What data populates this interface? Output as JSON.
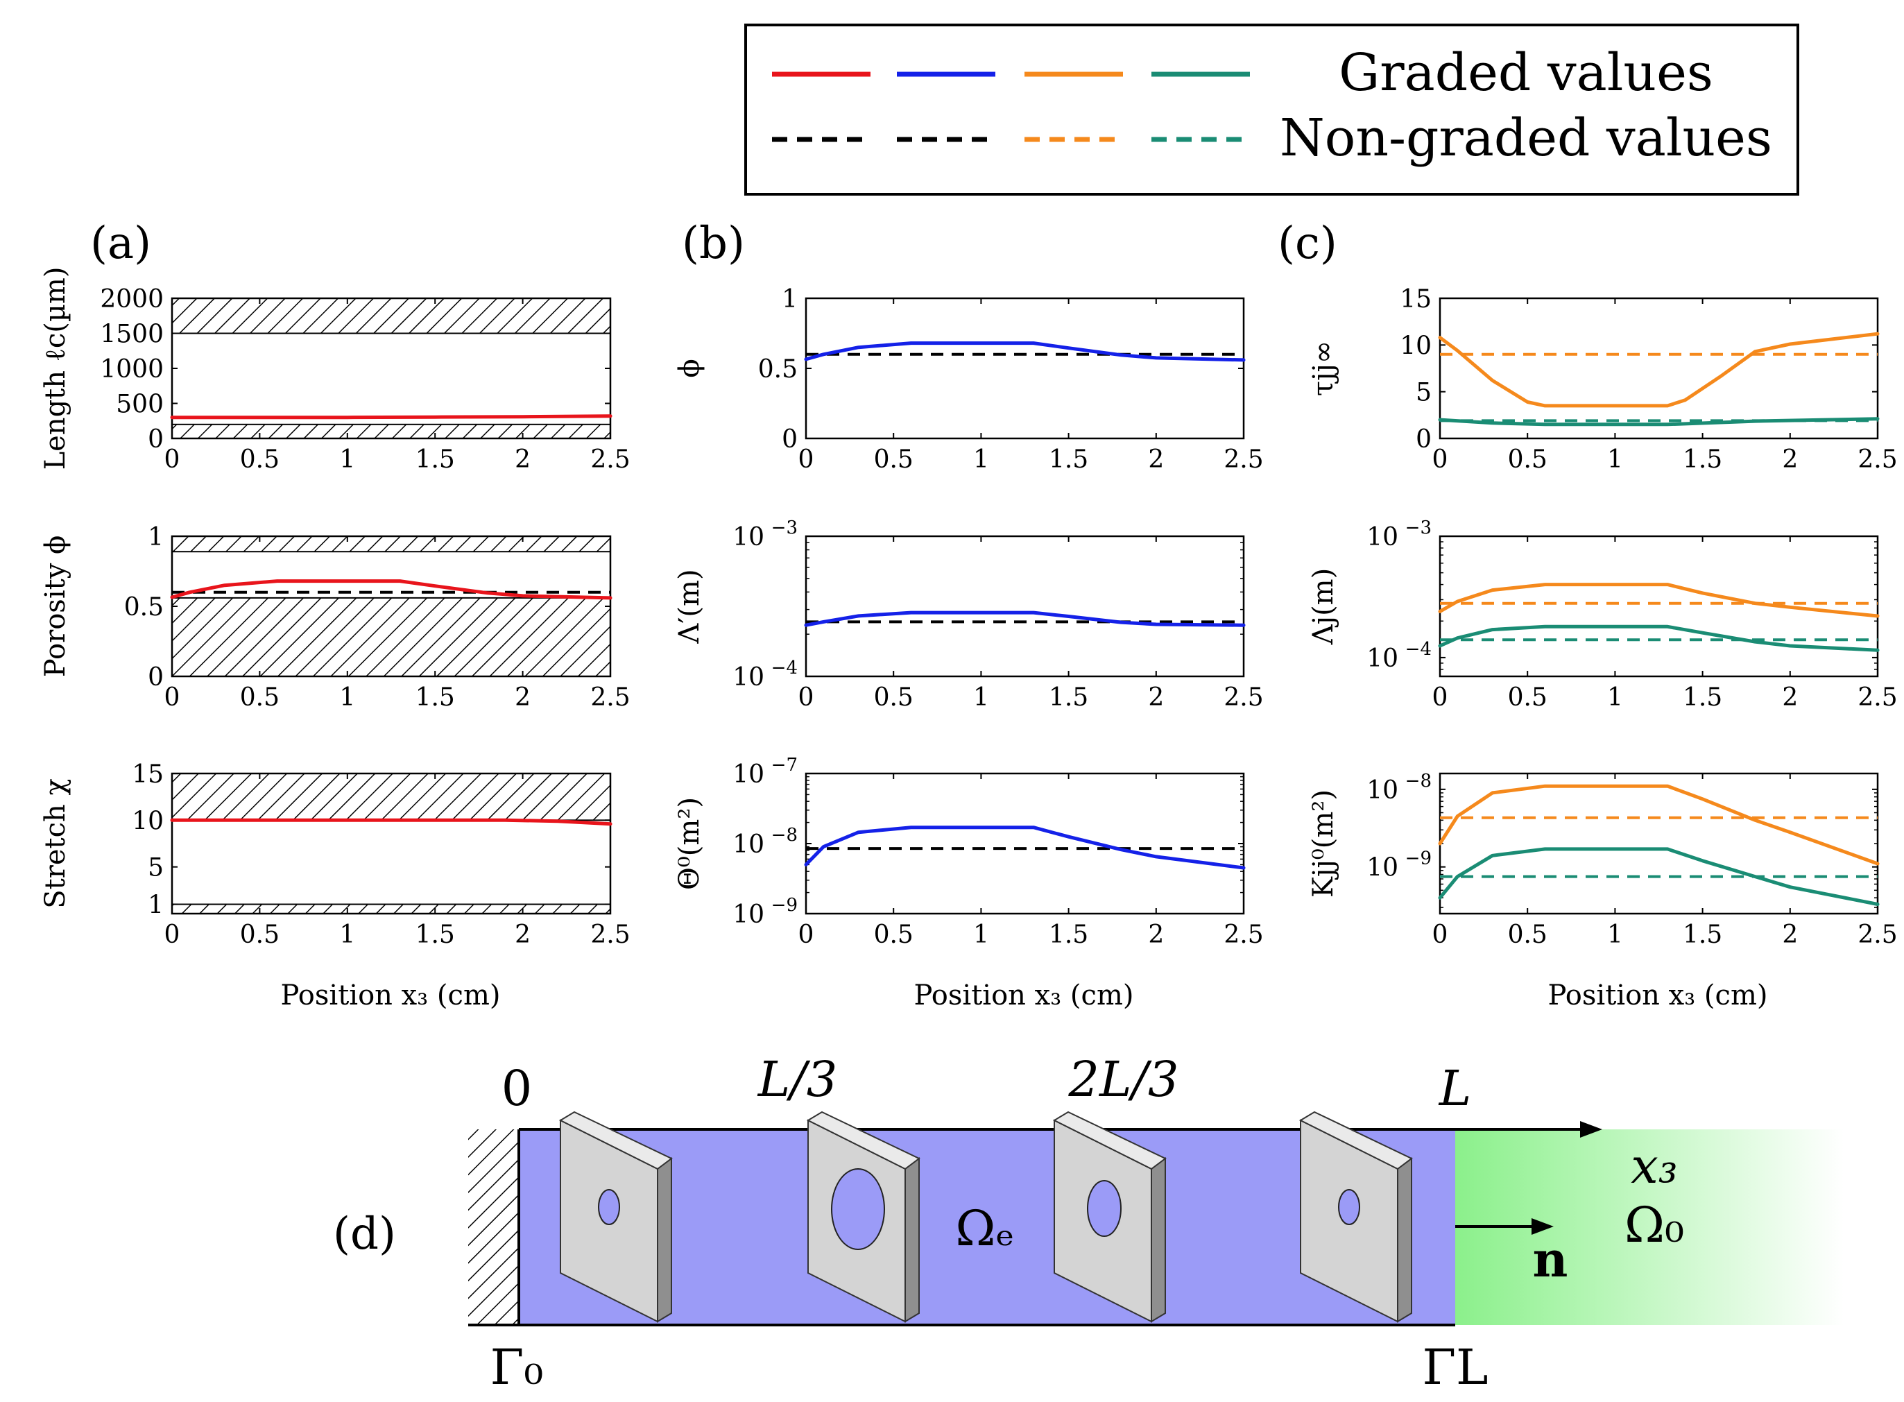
{
  "legend": {
    "graded_label": "Graded values",
    "nongraded_label": "Non-graded values",
    "colors": [
      "#e8141b",
      "#1421e8",
      "#f5891c",
      "#1a8c74",
      "#000000"
    ]
  },
  "panel_labels": {
    "a": "(a)",
    "b": "(b)",
    "c": "(c)",
    "d": "(d)"
  },
  "xlabel": "Position x₃ (cm)",
  "schematic": {
    "pos_labels": [
      "0",
      "L/3",
      "2L/3",
      "L"
    ],
    "x3": "x₃",
    "omega_e": "Ωₑ",
    "omega_0": "Ω₀",
    "n": "n",
    "gamma_0": "Γ₀",
    "gamma_L": "ΓL",
    "colors": {
      "solid": "#9b9bf7",
      "fluid": "#8bf08b",
      "plate": "#d4d4d4"
    }
  },
  "chart_data": [
    {
      "id": "a1",
      "type": "line",
      "ylabel": "Length ℓc(µm)",
      "xlim": [
        0,
        2.5
      ],
      "ylim": [
        0,
        2000
      ],
      "yscale": "linear",
      "xticks": [
        "0",
        "0.5",
        "1",
        "1.5",
        "2",
        "2.5"
      ],
      "yticks": [
        {
          "v": 0,
          "label": "0"
        },
        {
          "v": 500,
          "label": "500"
        },
        {
          "v": 1000,
          "label": "1000"
        },
        {
          "v": 1500,
          "label": "1500"
        },
        {
          "v": 2000,
          "label": "2000"
        }
      ],
      "hatch": [
        [
          0,
          200
        ],
        [
          1500,
          2000
        ]
      ],
      "series": [
        {
          "name": "Graded values",
          "color": "#e8141b",
          "dash": false,
          "x": [
            0,
            0.5,
            1,
            1.5,
            2,
            2.5
          ],
          "y": [
            300,
            300,
            300,
            305,
            310,
            320
          ]
        }
      ]
    },
    {
      "id": "a2",
      "type": "line",
      "ylabel": "Porosity ϕ",
      "xlim": [
        0,
        2.5
      ],
      "ylim": [
        0,
        1
      ],
      "yscale": "linear",
      "xticks": [
        "0",
        "0.5",
        "1",
        "1.5",
        "2",
        "2.5"
      ],
      "yticks": [
        {
          "v": 0,
          "label": "0"
        },
        {
          "v": 0.5,
          "label": "0.5"
        },
        {
          "v": 1,
          "label": "1"
        }
      ],
      "hatch": [
        [
          0,
          0.56
        ],
        [
          0.89,
          1
        ]
      ],
      "series": [
        {
          "name": "Graded values",
          "color": "#e8141b",
          "dash": false,
          "x": [
            0,
            0.1,
            0.3,
            0.6,
            1.3,
            1.5,
            1.8,
            2.0,
            2.5
          ],
          "y": [
            0.565,
            0.6,
            0.65,
            0.68,
            0.68,
            0.645,
            0.595,
            0.575,
            0.56
          ]
        },
        {
          "name": "Non-graded values",
          "color": "#000000",
          "dash": true,
          "x": [
            0,
            2.5
          ],
          "y": [
            0.6,
            0.6
          ]
        }
      ]
    },
    {
      "id": "a3",
      "type": "line",
      "ylabel": "Stretch χ",
      "xlim": [
        0,
        2.5
      ],
      "ylim": [
        0,
        15
      ],
      "yscale": "linear",
      "xticks": [
        "0",
        "0.5",
        "1",
        "1.5",
        "2",
        "2.5"
      ],
      "yticks": [
        {
          "v": 1,
          "label": "1"
        },
        {
          "v": 5,
          "label": "5"
        },
        {
          "v": 10,
          "label": "10"
        },
        {
          "v": 15,
          "label": "15"
        }
      ],
      "hatch": [
        [
          0,
          1
        ],
        [
          10,
          15
        ]
      ],
      "series": [
        {
          "name": "Graded values",
          "color": "#e8141b",
          "dash": false,
          "x": [
            0,
            0.5,
            1,
            1.5,
            1.9,
            2.2,
            2.5
          ],
          "y": [
            10,
            10,
            10,
            10,
            10,
            9.9,
            9.6
          ]
        }
      ]
    },
    {
      "id": "b1",
      "type": "line",
      "ylabel": "ϕ",
      "xlim": [
        0,
        2.5
      ],
      "ylim": [
        0,
        1
      ],
      "yscale": "linear",
      "xticks": [
        "0",
        "0.5",
        "1",
        "1.5",
        "2",
        "2.5"
      ],
      "yticks": [
        {
          "v": 0,
          "label": "0"
        },
        {
          "v": 0.5,
          "label": "0.5"
        },
        {
          "v": 1,
          "label": "1"
        }
      ],
      "series": [
        {
          "name": "Graded values",
          "color": "#1421e8",
          "dash": false,
          "x": [
            0,
            0.1,
            0.3,
            0.6,
            1.3,
            1.5,
            1.8,
            2.0,
            2.5
          ],
          "y": [
            0.565,
            0.6,
            0.65,
            0.68,
            0.68,
            0.645,
            0.595,
            0.575,
            0.56
          ]
        },
        {
          "name": "Non-graded values",
          "color": "#000000",
          "dash": true,
          "x": [
            0,
            2.5
          ],
          "y": [
            0.6,
            0.6
          ]
        }
      ]
    },
    {
      "id": "b2",
      "type": "line",
      "ylabel": "Λ′(m)",
      "xlim": [
        0,
        2.5
      ],
      "ylim": [
        0.0001,
        0.001
      ],
      "yscale": "log",
      "xticks": [
        "0",
        "0.5",
        "1",
        "1.5",
        "2",
        "2.5"
      ],
      "yticks": [
        {
          "v": 0.0001,
          "label": "10",
          "sup": "−4"
        },
        {
          "v": 0.001,
          "label": "10",
          "sup": "−3"
        }
      ],
      "series": [
        {
          "name": "Graded values",
          "color": "#1421e8",
          "dash": false,
          "x": [
            0,
            0.1,
            0.3,
            0.6,
            1.3,
            1.5,
            1.8,
            2.0,
            2.5
          ],
          "y": [
            0.000232,
            0.000245,
            0.00027,
            0.000285,
            0.000285,
            0.000268,
            0.000243,
            0.000235,
            0.000232
          ]
        },
        {
          "name": "Non-graded values",
          "color": "#000000",
          "dash": true,
          "x": [
            0,
            2.5
          ],
          "y": [
            0.000245,
            0.000245
          ]
        }
      ]
    },
    {
      "id": "b3",
      "type": "line",
      "ylabel": "Θ⁰(m²)",
      "xlim": [
        0,
        2.5
      ],
      "ylim": [
        1e-09,
        1e-07
      ],
      "yscale": "log",
      "xticks": [
        "0",
        "0.5",
        "1",
        "1.5",
        "2",
        "2.5"
      ],
      "yticks": [
        {
          "v": 1e-09,
          "label": "10",
          "sup": "−9"
        },
        {
          "v": 1e-08,
          "label": "10",
          "sup": "−8"
        },
        {
          "v": 1e-07,
          "label": "10",
          "sup": "−7"
        }
      ],
      "series": [
        {
          "name": "Graded values",
          "color": "#1421e8",
          "dash": false,
          "x": [
            0,
            0.1,
            0.3,
            0.6,
            1.3,
            1.5,
            1.8,
            2.0,
            2.5
          ],
          "y": [
            5e-09,
            9e-09,
            1.45e-08,
            1.7e-08,
            1.7e-08,
            1.25e-08,
            8.2e-09,
            6.5e-09,
            4.5e-09
          ]
        },
        {
          "name": "Non-graded values",
          "color": "#000000",
          "dash": true,
          "x": [
            0,
            2.5
          ],
          "y": [
            8.5e-09,
            8.5e-09
          ]
        }
      ]
    },
    {
      "id": "c1",
      "type": "line",
      "ylabel": "τjj∞",
      "xlim": [
        0,
        2.5
      ],
      "ylim": [
        0,
        15
      ],
      "yscale": "linear",
      "xticks": [
        "0",
        "0.5",
        "1",
        "1.5",
        "2",
        "2.5"
      ],
      "yticks": [
        {
          "v": 0,
          "label": "0"
        },
        {
          "v": 5,
          "label": "5"
        },
        {
          "v": 10,
          "label": "10"
        },
        {
          "v": 15,
          "label": "15"
        }
      ],
      "series": [
        {
          "name": "Graded values",
          "color": "#f5891c",
          "dash": false,
          "x": [
            0,
            0.1,
            0.3,
            0.5,
            0.6,
            1.3,
            1.4,
            1.6,
            1.8,
            2.0,
            2.5
          ],
          "y": [
            10.8,
            9.4,
            6.2,
            3.9,
            3.5,
            3.5,
            4.1,
            6.6,
            9.3,
            10.1,
            11.2
          ]
        },
        {
          "name": "Non-graded values",
          "color": "#f5891c",
          "dash": true,
          "x": [
            0,
            2.5
          ],
          "y": [
            9,
            9
          ]
        },
        {
          "name": "Graded values",
          "color": "#1a8c74",
          "dash": false,
          "x": [
            0,
            0.3,
            0.6,
            1.3,
            1.8,
            2.5
          ],
          "y": [
            2.0,
            1.65,
            1.5,
            1.5,
            1.85,
            2.1
          ]
        },
        {
          "name": "Non-graded values",
          "color": "#1a8c74",
          "dash": true,
          "x": [
            0,
            2.5
          ],
          "y": [
            1.9,
            1.9
          ]
        }
      ]
    },
    {
      "id": "c2",
      "type": "line",
      "ylabel": "Λj(m)",
      "xlim": [
        0,
        2.5
      ],
      "ylim": [
        7e-05,
        0.001
      ],
      "yscale": "log",
      "xticks": [
        "0",
        "0.5",
        "1",
        "1.5",
        "2",
        "2.5"
      ],
      "yticks": [
        {
          "v": 0.0001,
          "label": "10",
          "sup": "−4"
        },
        {
          "v": 0.001,
          "label": "10",
          "sup": "−3"
        }
      ],
      "series": [
        {
          "name": "Graded values",
          "color": "#f5891c",
          "dash": false,
          "x": [
            0,
            0.1,
            0.3,
            0.6,
            1.3,
            1.5,
            1.8,
            2.0,
            2.5
          ],
          "y": [
            0.00024,
            0.00029,
            0.00036,
            0.0004,
            0.0004,
            0.00034,
            0.00028,
            0.00026,
            0.00022
          ]
        },
        {
          "name": "Non-graded values",
          "color": "#f5891c",
          "dash": true,
          "x": [
            0,
            2.5
          ],
          "y": [
            0.00028,
            0.00028
          ]
        },
        {
          "name": "Graded values",
          "color": "#1a8c74",
          "dash": false,
          "x": [
            0,
            0.1,
            0.3,
            0.6,
            1.3,
            1.5,
            1.8,
            2.0,
            2.5
          ],
          "y": [
            0.000125,
            0.000145,
            0.00017,
            0.00018,
            0.00018,
            0.00016,
            0.000135,
            0.000125,
            0.000115
          ]
        },
        {
          "name": "Non-graded values",
          "color": "#1a8c74",
          "dash": true,
          "x": [
            0,
            2.5
          ],
          "y": [
            0.00014,
            0.00014
          ]
        }
      ]
    },
    {
      "id": "c3",
      "type": "line",
      "ylabel": "Kjj⁰(m²)",
      "xlim": [
        0,
        2.5
      ],
      "ylim": [
        2.5e-10,
        1.6e-08
      ],
      "yscale": "log",
      "xticks": [
        "0",
        "0.5",
        "1",
        "1.5",
        "2",
        "2.5"
      ],
      "yticks": [
        {
          "v": 1e-09,
          "label": "10",
          "sup": "−9"
        },
        {
          "v": 1e-08,
          "label": "10",
          "sup": "−8"
        }
      ],
      "series": [
        {
          "name": "Graded values",
          "color": "#f5891c",
          "dash": false,
          "x": [
            0,
            0.1,
            0.3,
            0.6,
            1.3,
            1.5,
            1.8,
            2.0,
            2.5
          ],
          "y": [
            2e-09,
            4.5e-09,
            9e-09,
            1.1e-08,
            1.1e-08,
            7.5e-09,
            4e-09,
            2.8e-09,
            1.1e-09
          ]
        },
        {
          "name": "Non-graded values",
          "color": "#f5891c",
          "dash": true,
          "x": [
            0,
            2.5
          ],
          "y": [
            4.3e-09,
            4.3e-09
          ]
        },
        {
          "name": "Graded values",
          "color": "#1a8c74",
          "dash": false,
          "x": [
            0,
            0.1,
            0.3,
            0.6,
            1.3,
            1.5,
            1.8,
            2.0,
            2.5
          ],
          "y": [
            4e-10,
            7.5e-10,
            1.4e-09,
            1.7e-09,
            1.7e-09,
            1.2e-09,
            7.5e-10,
            5.5e-10,
            3.3e-10
          ]
        },
        {
          "name": "Non-graded values",
          "color": "#1a8c74",
          "dash": true,
          "x": [
            0,
            2.5
          ],
          "y": [
            7.5e-10,
            7.5e-10
          ]
        }
      ]
    }
  ]
}
